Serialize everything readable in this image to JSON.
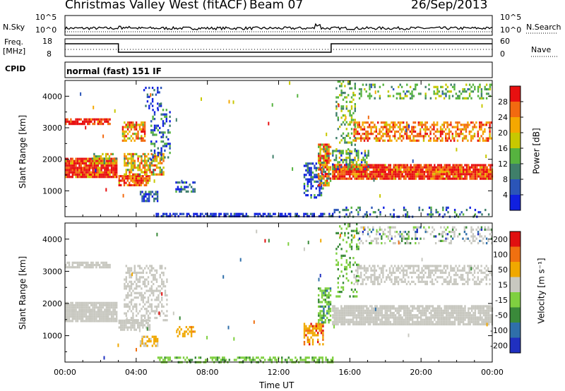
{
  "header": {
    "station": "Christmas Valley West (fitACF)",
    "beam": "Beam 07",
    "date": "26/Sep/2013"
  },
  "noise_panel": {
    "left_label": "N.Sky",
    "right_label": "N.Search",
    "left_ticks": [
      "10^5",
      "10^0"
    ],
    "right_ticks": [
      "10^5",
      "10^0"
    ]
  },
  "freq_panel": {
    "left_label_line1": "Freq.",
    "left_label_line2": "[MHz]",
    "right_label": "Nave",
    "left_ticks": [
      "18",
      "8"
    ],
    "right_ticks": [
      "60",
      "0"
    ],
    "freq_segments": [
      {
        "start_h": 0,
        "end_h": 3.0,
        "level": "high"
      },
      {
        "start_h": 3.0,
        "end_h": 14.95,
        "level": "low"
      },
      {
        "start_h": 14.95,
        "end_h": 24,
        "level": "high"
      }
    ]
  },
  "cpid": {
    "label": "CPID",
    "mode": "normal (fast) 151 IF"
  },
  "chart_data": [
    {
      "type": "heatmap",
      "name": "power",
      "ylabel": "Slant Range [km]",
      "y_ticks": [
        1000,
        2000,
        3000,
        4000
      ],
      "ylim": [
        180,
        4500
      ],
      "x_ticks": [
        "00:00",
        "04:00",
        "08:00",
        "12:00",
        "16:00",
        "20:00",
        "00:00"
      ],
      "xlim": [
        0,
        24
      ],
      "colorbar": {
        "label": "Power [dB]",
        "ticks": [
          "4",
          "8",
          "12",
          "16",
          "20",
          "24",
          "28"
        ],
        "colors": [
          "#1020e0",
          "#2b55b8",
          "#3f7f6a",
          "#56b33f",
          "#c8c800",
          "#f5a800",
          "#f26a10",
          "#e81010"
        ]
      }
    },
    {
      "type": "heatmap",
      "name": "velocity",
      "ylabel": "Slant Range [km]",
      "y_ticks": [
        1000,
        2000,
        3000,
        4000
      ],
      "ylim": [
        180,
        4500
      ],
      "x_ticks": [
        "00:00",
        "04:00",
        "08:00",
        "12:00",
        "16:00",
        "20:00",
        "00:00"
      ],
      "xlabel": "Time UT",
      "xlim": [
        0,
        24
      ],
      "colorbar": {
        "label": "Velocity [m s⁻¹]",
        "ticks": [
          "200",
          "100",
          "50",
          "15",
          "-15",
          "-50",
          "-100",
          "-200"
        ],
        "colors": [
          "#2030c0",
          "#2f6faa",
          "#3a8a3a",
          "#7fd040",
          "#c8c8c0",
          "#f0a800",
          "#f07010",
          "#e01010"
        ]
      }
    }
  ]
}
